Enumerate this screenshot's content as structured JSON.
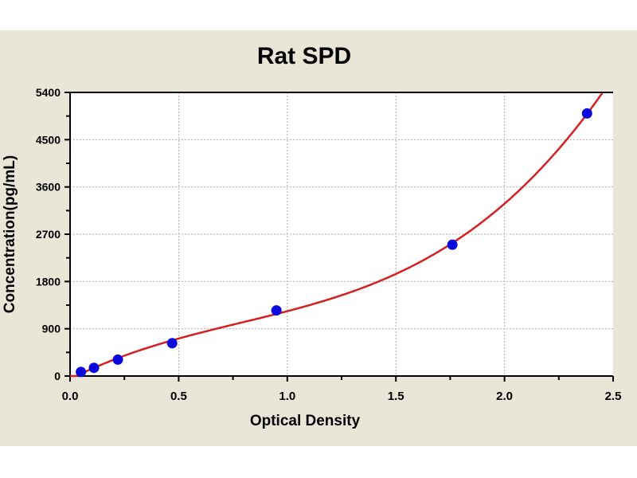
{
  "chart_data": {
    "type": "scatter",
    "title": "Rat SPD",
    "xlabel": "Optical Density",
    "ylabel": "Concentration(pg/mL)",
    "xlim": [
      0,
      2.5
    ],
    "ylim": [
      0,
      5400
    ],
    "xticks": [
      "0.0",
      "0.5",
      "1.0",
      "1.5",
      "2.0",
      "2.5"
    ],
    "yticks": [
      "0",
      "900",
      "1800",
      "2700",
      "3600",
      "4500",
      "5400"
    ],
    "grid": true,
    "points": {
      "x": [
        0.05,
        0.11,
        0.22,
        0.47,
        0.95,
        1.76,
        2.38
      ],
      "y": [
        78,
        156,
        312,
        625,
        1250,
        2500,
        5000
      ]
    },
    "fit": "polynomial (cubic) standard curve",
    "colors": {
      "points": "#0a0adc",
      "curve": "#d42020",
      "background": "#e9e5d7",
      "grid": "#b0b0b0"
    }
  }
}
